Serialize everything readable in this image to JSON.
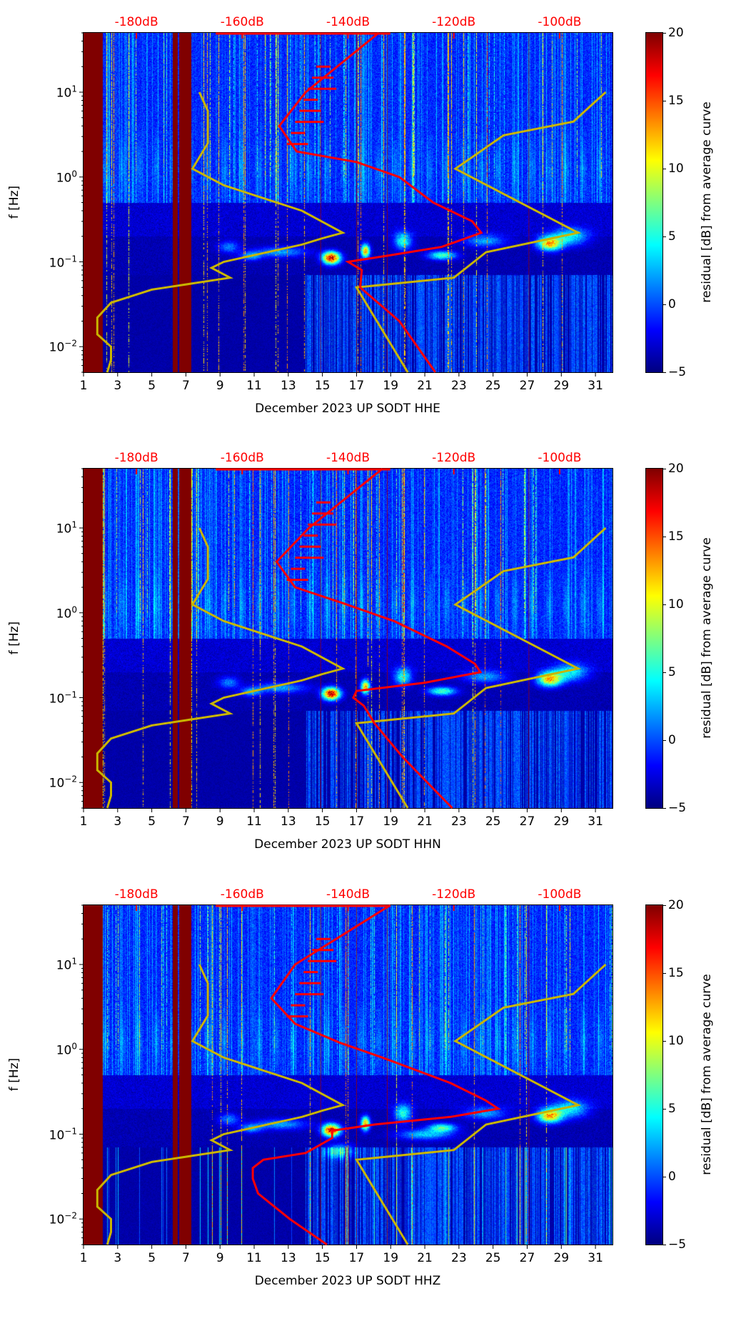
{
  "chart_data": [
    {
      "type": "heatmap",
      "title": "",
      "xlabel": "December 2023 UP SODT  HHE",
      "ylabel": "f [Hz]",
      "xlim": [
        1,
        32
      ],
      "ylim": [
        0.005,
        50
      ],
      "yscale": "log",
      "xticks": [
        1,
        3,
        5,
        7,
        9,
        11,
        13,
        15,
        17,
        19,
        21,
        23,
        25,
        27,
        29,
        31
      ],
      "yticks": [
        {
          "v": 0.01,
          "b": "10",
          "e": "−2"
        },
        {
          "v": 0.1,
          "b": "10",
          "e": "−1"
        },
        {
          "v": 1,
          "b": "10",
          "e": "0"
        },
        {
          "v": 10,
          "b": "10",
          "e": "1"
        }
      ],
      "top_axis": {
        "labels": [
          "-180dB",
          "-160dB",
          "-140dB",
          "-120dB",
          "-100dB"
        ],
        "values": [
          -180,
          -160,
          -140,
          -120,
          -100
        ]
      },
      "colorbar": {
        "label": "residual [dB] from average curve",
        "range": [
          -5,
          20
        ],
        "ticks": [
          "−5",
          "0",
          "5",
          "10",
          "15",
          "20"
        ]
      },
      "data_gaps_days": [
        [
          1,
          2.1
        ],
        [
          6.2,
          6.5
        ],
        [
          6.6,
          7.3
        ]
      ],
      "median_psd_dB": {
        "f": [
          50,
          10,
          4,
          2,
          1.5,
          1,
          0.5,
          0.3,
          0.22,
          0.15,
          0.12,
          0.1,
          0.08,
          0.05,
          0.02,
          0.005
        ],
        "dB": [
          -134.2,
          -148,
          -153,
          -149.7,
          -138.4,
          -130.3,
          -123.9,
          -116.5,
          -114.8,
          -122.3,
          -131.9,
          -140,
          -137.4,
          -137.7,
          -130.3,
          -123.5
        ]
      },
      "nlnm_dB": {
        "f": [
          10,
          6,
          2.5,
          1.25,
          0.8,
          0.4,
          0.22,
          0.19,
          0.16,
          0.1,
          0.085,
          0.065,
          0.047,
          0.033,
          0.022,
          0.014,
          0.01,
          0.007,
          0.005
        ],
        "dB": [
          -168.1,
          -166.5,
          -166.5,
          -169.4,
          -163.5,
          -148.7,
          -141,
          -144.8,
          -148.7,
          -163.5,
          -165.8,
          -162.3,
          -177.1,
          -184.8,
          -187.4,
          -187.4,
          -184.8,
          -184.8,
          -185.5
        ]
      },
      "nhnm_dB": {
        "f": [
          0.005,
          0.05,
          0.065,
          0.13,
          0.22,
          1.25,
          3.1,
          4.5,
          10
        ],
        "dB": [
          -128.7,
          -138.4,
          -120,
          -113.9,
          -96.5,
          -119.7,
          -110.6,
          -97.4,
          -91.3
        ]
      }
    },
    {
      "type": "heatmap",
      "title": "",
      "xlabel": "December 2023 UP SODT  HHN",
      "ylabel": "f [Hz]",
      "xlim": [
        1,
        32
      ],
      "ylim": [
        0.005,
        50
      ],
      "yscale": "log",
      "xticks": [
        1,
        3,
        5,
        7,
        9,
        11,
        13,
        15,
        17,
        19,
        21,
        23,
        25,
        27,
        29,
        31
      ],
      "yticks": [
        {
          "v": 0.01,
          "b": "10",
          "e": "−2"
        },
        {
          "v": 0.1,
          "b": "10",
          "e": "−1"
        },
        {
          "v": 1,
          "b": "10",
          "e": "0"
        },
        {
          "v": 10,
          "b": "10",
          "e": "1"
        }
      ],
      "top_axis": {
        "labels": [
          "-180dB",
          "-160dB",
          "-140dB",
          "-120dB",
          "-100dB"
        ],
        "values": [
          -180,
          -160,
          -140,
          -120,
          -100
        ]
      },
      "colorbar": {
        "label": "residual [dB] from average curve",
        "range": [
          -5,
          20
        ],
        "ticks": [
          "−5",
          "0",
          "5",
          "10",
          "15",
          "20"
        ]
      },
      "data_gaps_days": [
        [
          1,
          2.1
        ],
        [
          6.2,
          6.5
        ],
        [
          6.6,
          7.3
        ]
      ],
      "median_psd_dB": {
        "f": [
          50,
          10,
          4,
          2,
          1.3,
          0.8,
          0.4,
          0.25,
          0.2,
          0.15,
          0.12,
          0.1,
          0.08,
          0.05,
          0.02,
          0.005
        ],
        "dB": [
          -133.5,
          -147.4,
          -153.5,
          -150,
          -141,
          -131.3,
          -121.3,
          -116,
          -115,
          -125.5,
          -138.4,
          -139,
          -137,
          -135,
          -129.7,
          -120.3
        ]
      },
      "nlnm_dB": {
        "f": [
          10,
          6,
          2.5,
          1.25,
          0.8,
          0.4,
          0.22,
          0.19,
          0.16,
          0.1,
          0.085,
          0.065,
          0.047,
          0.033,
          0.022,
          0.014,
          0.01,
          0.007,
          0.005
        ],
        "dB": [
          -168.1,
          -166.5,
          -166.5,
          -169.4,
          -163.5,
          -148.7,
          -141,
          -144.8,
          -148.7,
          -163.5,
          -165.8,
          -162.3,
          -177.1,
          -184.8,
          -187.4,
          -187.4,
          -184.8,
          -184.8,
          -185.5
        ]
      },
      "nhnm_dB": {
        "f": [
          0.005,
          0.05,
          0.065,
          0.13,
          0.22,
          1.25,
          3.1,
          4.5,
          10
        ],
        "dB": [
          -128.7,
          -138.4,
          -120,
          -113.9,
          -96.5,
          -119.7,
          -110.6,
          -97.4,
          -91.3
        ]
      }
    },
    {
      "type": "heatmap",
      "title": "",
      "xlabel": "December 2023 UP SODT  HHZ",
      "ylabel": "f [Hz]",
      "xlim": [
        1,
        32
      ],
      "ylim": [
        0.005,
        50
      ],
      "yscale": "log",
      "xticks": [
        1,
        3,
        5,
        7,
        9,
        11,
        13,
        15,
        17,
        19,
        21,
        23,
        25,
        27,
        29,
        31
      ],
      "yticks": [
        {
          "v": 0.01,
          "b": "10",
          "e": "−2"
        },
        {
          "v": 0.1,
          "b": "10",
          "e": "−1"
        },
        {
          "v": 1,
          "b": "10",
          "e": "0"
        },
        {
          "v": 10,
          "b": "10",
          "e": "1"
        }
      ],
      "top_axis": {
        "labels": [
          "-180dB",
          "-160dB",
          "-140dB",
          "-120dB",
          "-100dB"
        ],
        "values": [
          -180,
          -160,
          -140,
          -120,
          -100
        ]
      },
      "colorbar": {
        "label": "residual [dB] from average curve",
        "range": [
          -5,
          20
        ],
        "ticks": [
          "−5",
          "0",
          "5",
          "10",
          "15",
          "20"
        ]
      },
      "data_gaps_days": [
        [
          1,
          2.1
        ],
        [
          6.2,
          6.5
        ],
        [
          6.6,
          7.3
        ]
      ],
      "median_psd_dB": {
        "f": [
          50,
          10,
          4,
          2,
          1.2,
          0.8,
          0.4,
          0.25,
          0.2,
          0.16,
          0.13,
          0.11,
          0.09,
          0.06,
          0.05,
          0.04,
          0.03,
          0.02,
          0.01,
          0.005
        ],
        "dB": [
          -132,
          -150,
          -154.5,
          -150,
          -141.6,
          -133.5,
          -120.6,
          -114,
          -111.6,
          -120.6,
          -135,
          -143,
          -143,
          -148,
          -156,
          -158,
          -158,
          -157,
          -151,
          -144
        ]
      },
      "nlnm_dB": {
        "f": [
          10,
          6,
          2.5,
          1.25,
          0.8,
          0.4,
          0.22,
          0.19,
          0.16,
          0.1,
          0.085,
          0.065,
          0.047,
          0.033,
          0.022,
          0.014,
          0.01,
          0.007,
          0.005
        ],
        "dB": [
          -168.1,
          -166.5,
          -166.5,
          -169.4,
          -163.5,
          -148.7,
          -141,
          -144.8,
          -148.7,
          -163.5,
          -165.8,
          -162.3,
          -177.1,
          -184.8,
          -187.4,
          -187.4,
          -184.8,
          -184.8,
          -185.5
        ]
      },
      "nhnm_dB": {
        "f": [
          0.005,
          0.05,
          0.065,
          0.13,
          0.22,
          1.25,
          3.1,
          4.5,
          10
        ],
        "dB": [
          -128.7,
          -138.4,
          -120,
          -113.9,
          -96.5,
          -119.7,
          -110.6,
          -97.4,
          -91.3
        ]
      }
    }
  ],
  "colors": {
    "median": "#ff0000",
    "noise_models": "#c8b400",
    "top_axis": "#ff0000"
  }
}
